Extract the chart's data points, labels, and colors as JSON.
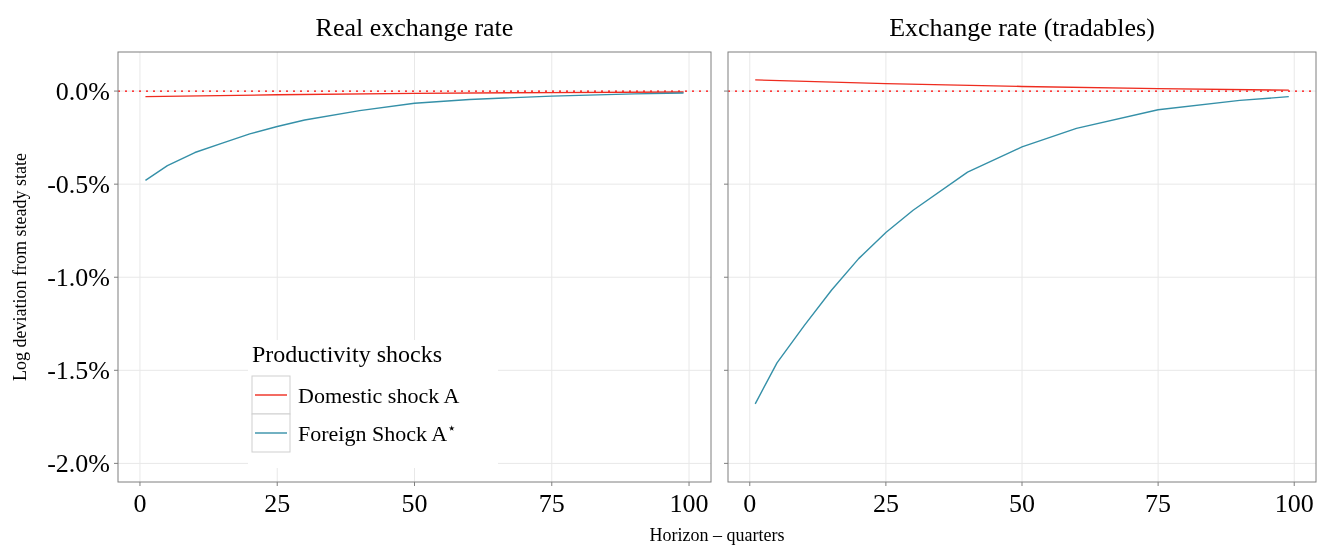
{
  "chart_data": [
    {
      "type": "line",
      "title": "Real exchange rate",
      "ylabel": "Log deviation from steady state",
      "xlabel": "Horizon – quarters",
      "legend_title": "Productivity shocks",
      "legend": "bottom left",
      "grid": true,
      "xlim": [
        -4,
        104
      ],
      "xticks": [
        0,
        25,
        50,
        75,
        100
      ],
      "ylim": [
        -2.1,
        0.21
      ],
      "yticks": [
        {
          "value": 0,
          "label": "0.0%"
        },
        {
          "value": -0.5,
          "label": "-0.5%"
        },
        {
          "value": -1,
          "label": "-1.0%"
        },
        {
          "value": -1.5,
          "label": "-1.5%"
        },
        {
          "value": -2,
          "label": "-2.0%"
        }
      ],
      "ref_lines": [
        {
          "axis": "y",
          "value": 0,
          "color": "#ff0000",
          "line_style": "dotted"
        }
      ],
      "series": [
        {
          "name": "Domestic shock A",
          "color": "#ee2c1f",
          "x": [
            1,
            25,
            50,
            75,
            99
          ],
          "values": [
            -0.03,
            -0.02,
            -0.012,
            -0.008,
            -0.005
          ]
        },
        {
          "name": "Foreign Shock A$^{⋆}$",
          "color": "#3590a8",
          "x": [
            1,
            5,
            10,
            15,
            20,
            25,
            30,
            40,
            50,
            60,
            75,
            90,
            99
          ],
          "values": [
            -0.48,
            -0.4,
            -0.33,
            -0.28,
            -0.23,
            -0.19,
            -0.155,
            -0.105,
            -0.065,
            -0.045,
            -0.027,
            -0.015,
            -0.01
          ]
        }
      ]
    },
    {
      "type": "line",
      "title": "Exchange rate (tradables)",
      "tick_labels": "x",
      "grid": true,
      "xlim": [
        -4,
        104
      ],
      "xticks": [
        0,
        25,
        50,
        75,
        100
      ],
      "ylim": [
        -2.1,
        0.21
      ],
      "yticks": [
        {
          "value": 0,
          "label": null
        },
        {
          "value": -0.5,
          "label": null
        },
        {
          "value": -1,
          "label": null
        },
        {
          "value": -1.5,
          "label": null
        },
        {
          "value": -2,
          "label": null
        }
      ],
      "ref_lines": [
        {
          "axis": "y",
          "value": 0,
          "color": "#ff0000",
          "line_style": "dotted"
        }
      ],
      "series": [
        {
          "color": "#ee2c1f",
          "x": [
            1,
            25,
            50,
            75,
            99
          ],
          "values": [
            0.06,
            0.04,
            0.025,
            0.013,
            0.005
          ]
        },
        {
          "color": "#3590a8",
          "x": [
            1,
            5,
            10,
            15,
            20,
            25,
            30,
            40,
            50,
            60,
            75,
            90,
            99
          ],
          "values": [
            -1.68,
            -1.46,
            -1.26,
            -1.07,
            -0.9,
            -0.76,
            -0.64,
            -0.435,
            -0.3,
            -0.2,
            -0.1,
            -0.05,
            -0.03
          ]
        }
      ]
    }
  ]
}
